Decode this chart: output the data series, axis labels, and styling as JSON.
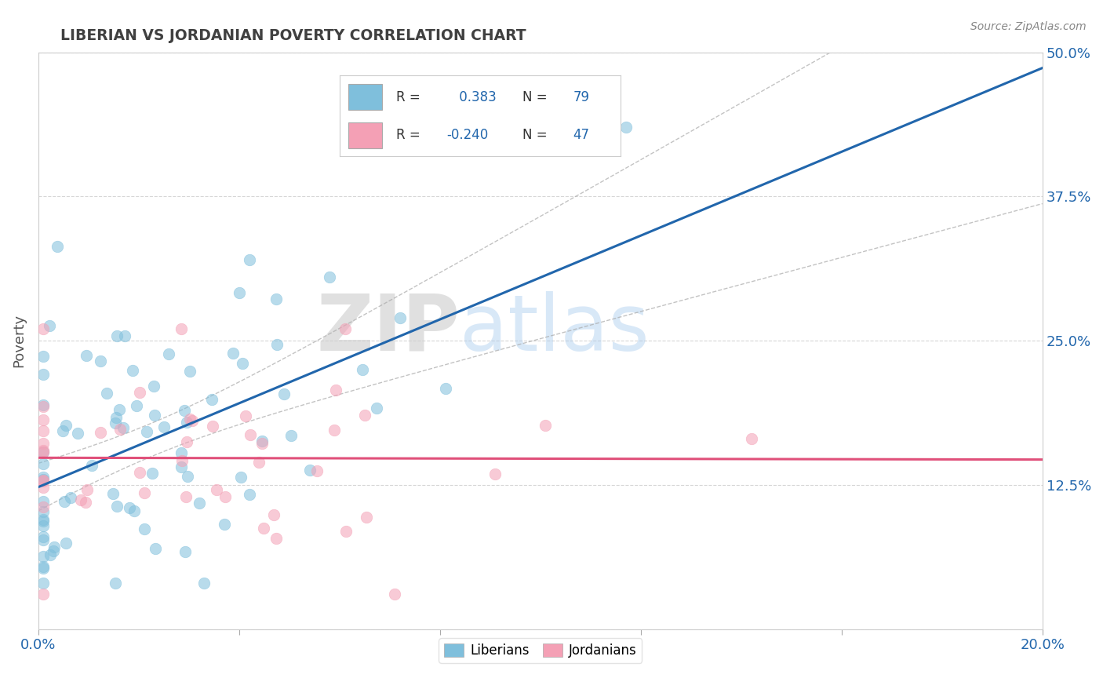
{
  "title": "LIBERIAN VS JORDANIAN POVERTY CORRELATION CHART",
  "source": "Source: ZipAtlas.com",
  "ylabel": "Poverty",
  "xlim": [
    0.0,
    0.2
  ],
  "ylim": [
    0.0,
    0.5
  ],
  "blue_color": "#7fbfdc",
  "pink_color": "#f4a0b5",
  "blue_line_color": "#2166ac",
  "pink_line_color": "#e0507a",
  "gray_ci_color": "#aaaaaa",
  "R_blue": 0.383,
  "N_blue": 79,
  "R_pink": -0.24,
  "N_pink": 47,
  "background_color": "#ffffff",
  "grid_color": "#cccccc",
  "title_color": "#404040",
  "axis_tick_color": "#2166ac",
  "watermark_zip": "ZIP",
  "watermark_atlas": "atlas",
  "seed": 12
}
